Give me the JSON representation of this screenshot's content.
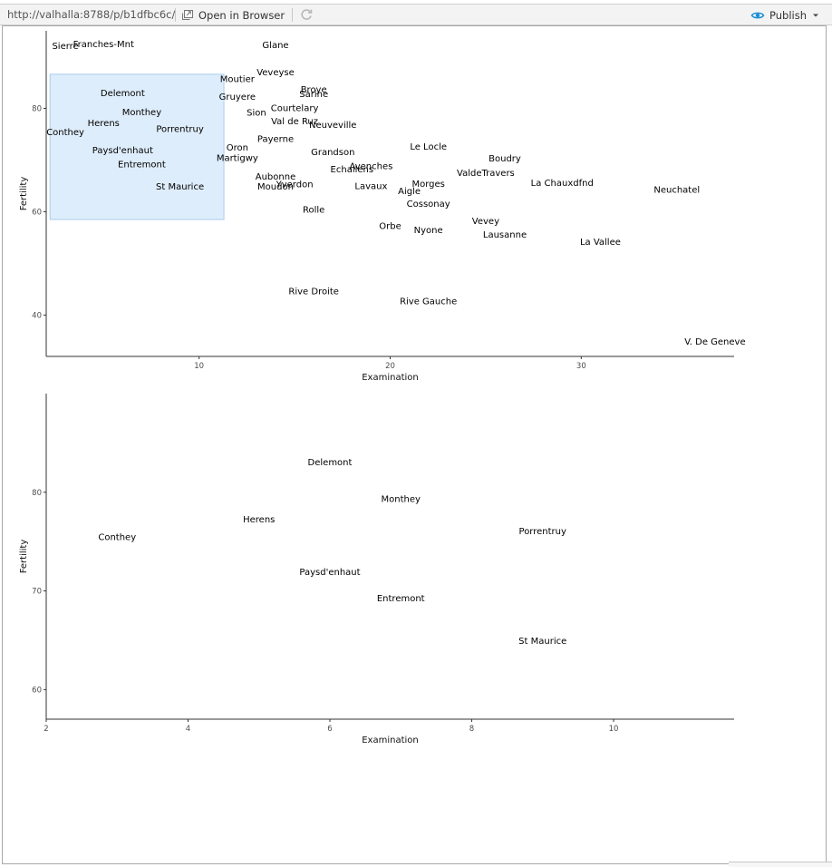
{
  "toolbar": {
    "url": "http://valhalla:8788/p/b1dfbc6c/",
    "open_in_browser": "Open in Browser",
    "publish": "Publish",
    "accent": "#1a8fd6"
  },
  "chart_data": [
    {
      "type": "scatter",
      "xlabel": "Examination",
      "ylabel": "Fertility",
      "xlim": [
        2,
        38
      ],
      "ylim": [
        32,
        95
      ],
      "xticks": [
        10,
        20,
        30
      ],
      "yticks": [
        40,
        60,
        80
      ],
      "grid": false,
      "brush": {
        "xmin": 2.2,
        "xmax": 11.3,
        "ymin": 58.5,
        "ymax": 86.6,
        "color": "#deedfb"
      },
      "points": [
        {
          "label": "Courtelary",
          "x": 15,
          "y": 80.2
        },
        {
          "label": "Delemont",
          "x": 6,
          "y": 83.1
        },
        {
          "label": "Franches-Mnt",
          "x": 5,
          "y": 92.5
        },
        {
          "label": "Moutier",
          "x": 12,
          "y": 85.8
        },
        {
          "label": "Neuveville",
          "x": 17,
          "y": 76.9
        },
        {
          "label": "Porrentruy",
          "x": 9,
          "y": 76.1
        },
        {
          "label": "Broye",
          "x": 16,
          "y": 83.8
        },
        {
          "label": "Glane",
          "x": 14,
          "y": 92.4
        },
        {
          "label": "Gruyere",
          "x": 12,
          "y": 82.4
        },
        {
          "label": "Sarine",
          "x": 16,
          "y": 82.9
        },
        {
          "label": "Veveyse",
          "x": 14,
          "y": 87.1
        },
        {
          "label": "Aigle",
          "x": 21,
          "y": 64.1
        },
        {
          "label": "Aubonne",
          "x": 14,
          "y": 66.9
        },
        {
          "label": "Avenches",
          "x": 19,
          "y": 68.9
        },
        {
          "label": "Cossonay",
          "x": 22,
          "y": 61.7
        },
        {
          "label": "Echallens",
          "x": 18,
          "y": 68.3
        },
        {
          "label": "Grandson",
          "x": 17,
          "y": 71.7
        },
        {
          "label": "Lausanne",
          "x": 26,
          "y": 55.7
        },
        {
          "label": "La Vallee",
          "x": 31,
          "y": 54.3
        },
        {
          "label": "Lavaux",
          "x": 19,
          "y": 65.1
        },
        {
          "label": "Morges",
          "x": 22,
          "y": 65.5
        },
        {
          "label": "Moudon",
          "x": 14,
          "y": 65.0
        },
        {
          "label": "Nyone",
          "x": 22,
          "y": 56.6
        },
        {
          "label": "Orbe",
          "x": 20,
          "y": 57.4
        },
        {
          "label": "Oron",
          "x": 12,
          "y": 72.5
        },
        {
          "label": "Payerne",
          "x": 14,
          "y": 74.2
        },
        {
          "label": "Paysd'enhaut",
          "x": 6,
          "y": 72.0
        },
        {
          "label": "Rolle",
          "x": 16,
          "y": 60.5
        },
        {
          "label": "Vevey",
          "x": 25,
          "y": 58.3
        },
        {
          "label": "Yverdon",
          "x": 15,
          "y": 65.4
        },
        {
          "label": "Conthey",
          "x": 3,
          "y": 75.5
        },
        {
          "label": "Entremont",
          "x": 7,
          "y": 69.3
        },
        {
          "label": "Herens",
          "x": 5,
          "y": 77.3
        },
        {
          "label": "Martigwy",
          "x": 12,
          "y": 70.5
        },
        {
          "label": "Monthey",
          "x": 7,
          "y": 79.4
        },
        {
          "label": "St Maurice",
          "x": 9,
          "y": 65.0
        },
        {
          "label": "Sierre",
          "x": 3,
          "y": 92.2
        },
        {
          "label": "Sion",
          "x": 13,
          "y": 79.3
        },
        {
          "label": "Boudry",
          "x": 26,
          "y": 70.4
        },
        {
          "label": "La Chauxdfnd",
          "x": 29,
          "y": 65.7
        },
        {
          "label": "Le Locle",
          "x": 22,
          "y": 72.7
        },
        {
          "label": "Neuchatel",
          "x": 35,
          "y": 64.4
        },
        {
          "label": "Val de Ruz",
          "x": 15,
          "y": 77.6
        },
        {
          "label": "ValdeTravers",
          "x": 25,
          "y": 67.6
        },
        {
          "label": "V. De Geneve",
          "x": 37,
          "y": 35.0
        },
        {
          "label": "Rive Droite",
          "x": 16,
          "y": 44.7
        },
        {
          "label": "Rive Gauche",
          "x": 22,
          "y": 42.8
        }
      ]
    },
    {
      "type": "scatter",
      "xlabel": "Examination",
      "ylabel": "Fertility",
      "xlim": [
        2,
        11.7
      ],
      "ylim": [
        57,
        90
      ],
      "xticks": [
        2,
        4,
        6,
        8,
        10
      ],
      "yticks": [
        60,
        70,
        80
      ],
      "grid": false,
      "points": [
        {
          "label": "Delemont",
          "x": 6,
          "y": 83.1
        },
        {
          "label": "Monthey",
          "x": 7,
          "y": 79.4
        },
        {
          "label": "Herens",
          "x": 5,
          "y": 77.3
        },
        {
          "label": "Porrentruy",
          "x": 9,
          "y": 76.1
        },
        {
          "label": "Conthey",
          "x": 3,
          "y": 75.5
        },
        {
          "label": "Paysd'enhaut",
          "x": 6,
          "y": 72.0
        },
        {
          "label": "Entremont",
          "x": 7,
          "y": 69.3
        },
        {
          "label": "St Maurice",
          "x": 9,
          "y": 65.0
        }
      ]
    }
  ]
}
